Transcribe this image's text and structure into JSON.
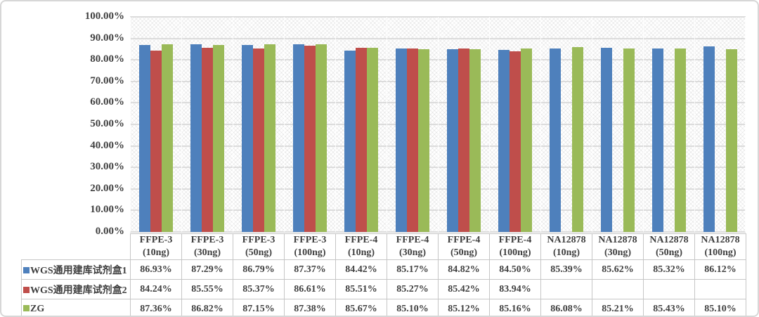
{
  "chart_data": {
    "type": "bar",
    "title": "",
    "xlabel": "",
    "ylabel": "",
    "grid": true,
    "legend_position": "table-left",
    "plot_background": "diagonal-crosshatch",
    "categories": [
      {
        "name": "FFPE-3",
        "dose": "(10ng)"
      },
      {
        "name": "FFPE-3",
        "dose": "(30ng)"
      },
      {
        "name": "FFPE-3",
        "dose": "(50ng)"
      },
      {
        "name": "FFPE-3",
        "dose": "(100ng)"
      },
      {
        "name": "FFPE-4",
        "dose": "(10ng)"
      },
      {
        "name": "FFPE-4",
        "dose": "(30ng)"
      },
      {
        "name": "FFPE-4",
        "dose": "(50ng)"
      },
      {
        "name": "FFPE-4",
        "dose": "(100ng)"
      },
      {
        "name": "NA12878",
        "dose": "(10ng)"
      },
      {
        "name": "NA12878",
        "dose": "(30ng)"
      },
      {
        "name": "NA12878",
        "dose": "(50ng)"
      },
      {
        "name": "NA12878",
        "dose": "(100ng)"
      }
    ],
    "series": [
      {
        "name": "WGS通用建库试剂盒1",
        "color": "#4E80BC",
        "values": [
          86.93,
          87.29,
          86.79,
          87.37,
          84.42,
          85.17,
          84.82,
          84.5,
          85.39,
          85.62,
          85.32,
          86.12
        ]
      },
      {
        "name": "WGS通用建库试剂盒2",
        "color": "#BF4E4B",
        "values": [
          84.24,
          85.55,
          85.37,
          86.61,
          85.51,
          85.27,
          85.42,
          83.94,
          null,
          null,
          null,
          null
        ]
      },
      {
        "name": "ZG",
        "color": "#9ABA58",
        "values": [
          87.36,
          86.82,
          87.15,
          87.38,
          85.67,
          85.1,
          85.12,
          85.16,
          86.08,
          85.21,
          85.43,
          85.1
        ]
      }
    ],
    "y_axis": {
      "min": 0,
      "max": 100,
      "step": 10,
      "tick_labels": [
        "0.00%",
        "10.00%",
        "20.00%",
        "30.00%",
        "40.00%",
        "50.00%",
        "60.00%",
        "70.00%",
        "80.00%",
        "90.00%",
        "100.00%"
      ]
    },
    "colors": {
      "gridline": "#dcdcdc",
      "table_border": "#c6c6c6",
      "text": "#3f3f3f",
      "frame_border": "#d7d7d7"
    }
  }
}
